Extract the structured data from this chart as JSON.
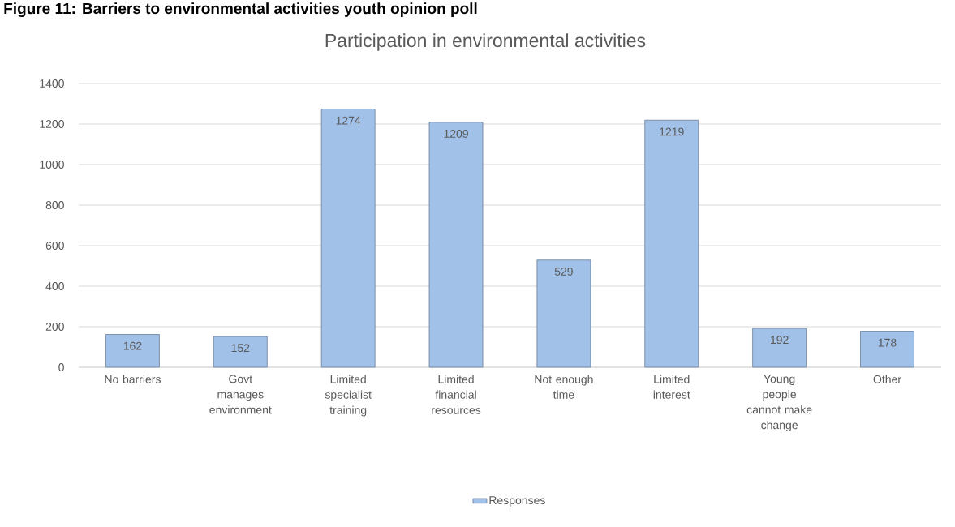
{
  "chart_data": {
    "type": "bar",
    "title": "Participation in environmental activities",
    "annotations": [
      "Figure 11: Barriers to environmental activities youth opinion poll"
    ],
    "categories": [
      "No barriers",
      "Govt manages environment",
      "Limited specialist training",
      "Limited financial resources",
      "Not enough time",
      "Limited interest",
      "Young people cannot make change",
      "Other"
    ],
    "series": [
      {
        "name": "Responses",
        "color": "#a2c1e8",
        "values": [
          162,
          152,
          1274,
          1209,
          529,
          1219,
          192,
          178
        ]
      }
    ],
    "ylim": [
      0,
      1400
    ],
    "yticks": [
      0,
      200,
      400,
      600,
      800,
      1000,
      1200,
      1400
    ],
    "grid": "y",
    "data_labels": true,
    "legend": "bottom"
  }
}
